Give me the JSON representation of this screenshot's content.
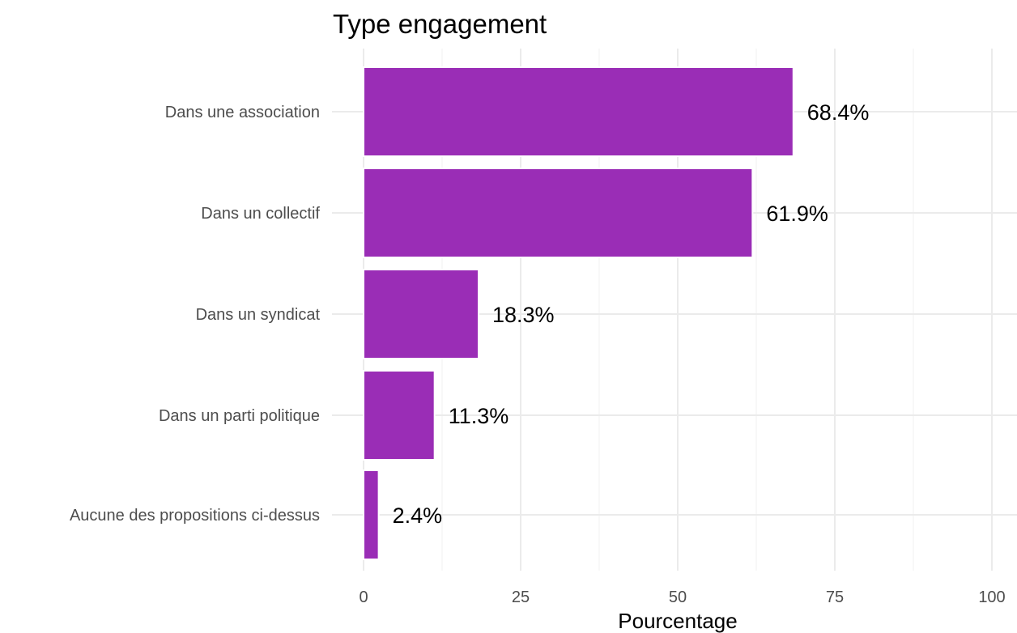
{
  "chart_data": {
    "type": "bar",
    "orientation": "horizontal",
    "title": "Type engagement",
    "xlabel": "Pourcentage",
    "ylabel": "",
    "categories": [
      "Dans une association",
      "Dans un collectif",
      "Dans un syndicat",
      "Dans un parti politique",
      "Aucune des propositions ci-dessus"
    ],
    "values": [
      68.4,
      61.9,
      18.3,
      11.3,
      2.4
    ],
    "value_labels": [
      "68.4%",
      "61.9%",
      "18.3%",
      "11.3%",
      "2.4%"
    ],
    "xlim": [
      0,
      100
    ],
    "xticks": [
      0,
      25,
      50,
      75,
      100
    ],
    "xtick_labels": [
      "0",
      "25",
      "50",
      "75",
      "100"
    ],
    "grid": true,
    "legend": "none",
    "bar_color": "#9A2DB6",
    "bar_outline_color": "#ffffff"
  }
}
